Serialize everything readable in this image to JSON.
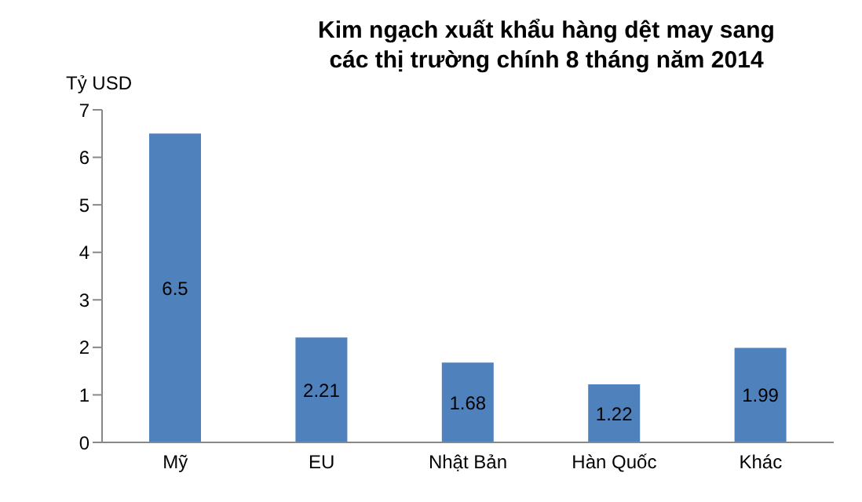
{
  "chart_data": {
    "type": "bar",
    "title": "Kim ngạch xuất khẩu hàng dệt may sang các thị trường chính 8 tháng năm 2014",
    "ylabel": "Tỷ USD",
    "categories": [
      "Mỹ",
      "EU",
      "Nhật Bản",
      "Hàn Quốc",
      "Khác"
    ],
    "values": [
      6.5,
      2.21,
      1.68,
      1.22,
      1.99
    ],
    "color": "#4f81bd",
    "ylim": [
      0,
      7
    ],
    "yticks": [
      0,
      1,
      2,
      3,
      4,
      5,
      6,
      7
    ],
    "data_labels": true,
    "grid": false
  }
}
